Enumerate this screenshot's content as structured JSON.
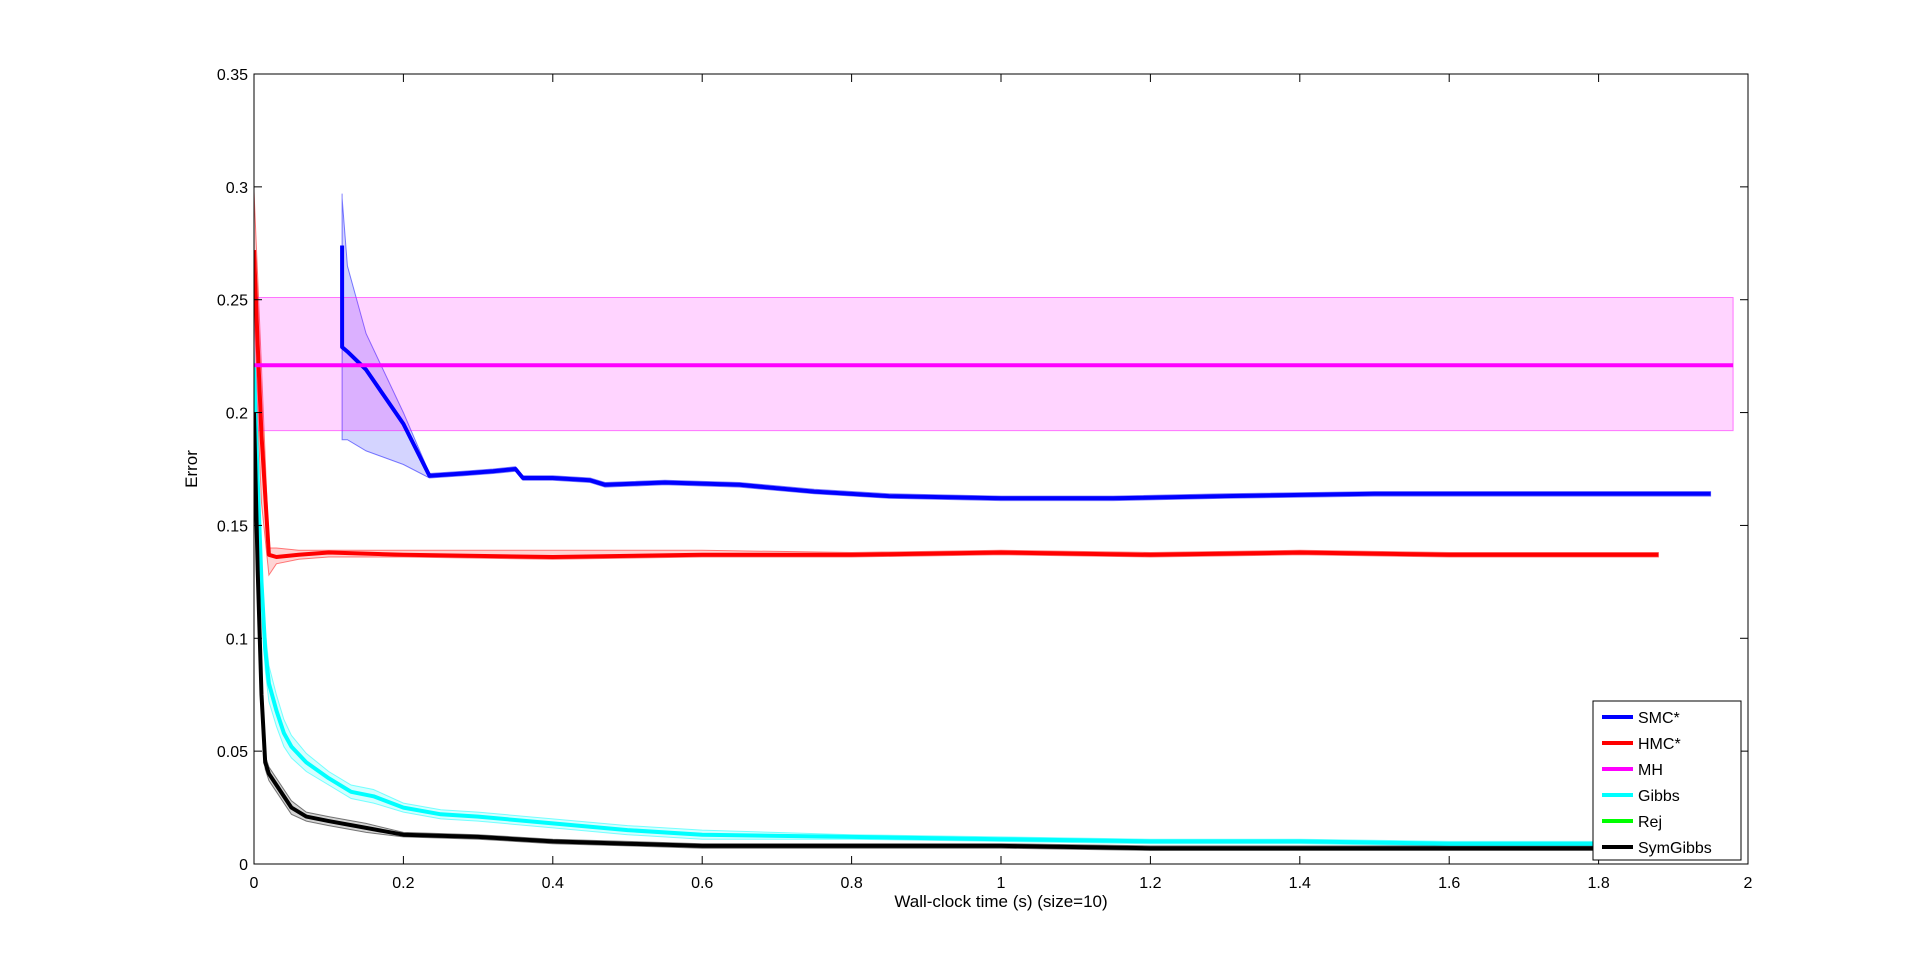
{
  "chart_data": {
    "type": "line",
    "title": "",
    "xlabel": "Wall-clock time (s) (size=10)",
    "ylabel": "Error",
    "xlim": [
      0,
      2
    ],
    "ylim": [
      0,
      0.35
    ],
    "xticks": [
      0,
      0.2,
      0.4,
      0.6,
      0.8,
      1,
      1.2,
      1.4,
      1.6,
      1.8,
      2
    ],
    "xtick_labels": [
      "0",
      "0.2",
      "0.4",
      "0.6",
      "0.8",
      "1",
      "1.2",
      "1.4",
      "1.6",
      "1.8",
      "2"
    ],
    "yticks": [
      0,
      0.05,
      0.1,
      0.15,
      0.2,
      0.25,
      0.3,
      0.35
    ],
    "ytick_labels": [
      "0",
      "0.05",
      "0.1",
      "0.15",
      "0.2",
      "0.25",
      "0.3",
      "0.35"
    ],
    "grid": false,
    "legend_position": "bottom-right",
    "series": [
      {
        "name": "SMC*",
        "color": "#0000ff",
        "x": [
          0.118,
          0.118,
          0.125,
          0.15,
          0.2,
          0.235,
          0.28,
          0.32,
          0.35,
          0.36,
          0.4,
          0.45,
          0.47,
          0.55,
          0.65,
          0.75,
          0.85,
          1.0,
          1.15,
          1.3,
          1.5,
          1.7,
          1.95
        ],
        "y": [
          0.274,
          0.229,
          0.227,
          0.219,
          0.195,
          0.172,
          0.173,
          0.174,
          0.175,
          0.171,
          0.171,
          0.17,
          0.168,
          0.169,
          0.168,
          0.165,
          0.163,
          0.162,
          0.162,
          0.163,
          0.164,
          0.164,
          0.164
        ],
        "upper": [
          0.297,
          0.295,
          0.265,
          0.235,
          0.2,
          0.173,
          0.174,
          0.175,
          0.176,
          0.172,
          0.172,
          0.171,
          0.169,
          0.17,
          0.169,
          0.166,
          0.164,
          0.163,
          0.163,
          0.164,
          0.165,
          0.165,
          0.165
        ],
        "lower": [
          0.25,
          0.188,
          0.188,
          0.183,
          0.177,
          0.171,
          0.172,
          0.173,
          0.174,
          0.17,
          0.17,
          0.169,
          0.167,
          0.168,
          0.167,
          0.164,
          0.162,
          0.161,
          0.161,
          0.162,
          0.163,
          0.163,
          0.163
        ]
      },
      {
        "name": "HMC*",
        "color": "#ff0000",
        "x": [
          0,
          0.005,
          0.01,
          0.02,
          0.03,
          0.06,
          0.1,
          0.2,
          0.4,
          0.6,
          0.8,
          1.0,
          1.2,
          1.4,
          1.6,
          1.88
        ],
        "y": [
          0.272,
          0.23,
          0.19,
          0.137,
          0.136,
          0.137,
          0.138,
          0.137,
          0.136,
          0.137,
          0.137,
          0.138,
          0.137,
          0.138,
          0.137,
          0.137
        ],
        "upper": [
          0.298,
          0.26,
          0.22,
          0.14,
          0.14,
          0.139,
          0.139,
          0.139,
          0.139,
          0.139,
          0.138,
          0.139,
          0.138,
          0.139,
          0.138,
          0.138
        ],
        "lower": [
          0.25,
          0.2,
          0.16,
          0.128,
          0.133,
          0.135,
          0.136,
          0.136,
          0.135,
          0.136,
          0.136,
          0.137,
          0.136,
          0.137,
          0.136,
          0.136
        ]
      },
      {
        "name": "MH",
        "color": "#ff00ff",
        "x": [
          0,
          1.98
        ],
        "y": [
          0.221,
          0.221
        ],
        "upper": [
          0.251,
          0.251
        ],
        "lower": [
          0.192,
          0.192
        ]
      },
      {
        "name": "Gibbs",
        "color": "#00ffff",
        "x": [
          0,
          0.005,
          0.01,
          0.015,
          0.02,
          0.03,
          0.04,
          0.05,
          0.07,
          0.1,
          0.13,
          0.16,
          0.2,
          0.25,
          0.3,
          0.4,
          0.5,
          0.6,
          0.8,
          1.0,
          1.2,
          1.4,
          1.6,
          1.8
        ],
        "y": [
          0.22,
          0.17,
          0.125,
          0.095,
          0.08,
          0.068,
          0.058,
          0.052,
          0.045,
          0.038,
          0.032,
          0.03,
          0.025,
          0.022,
          0.021,
          0.018,
          0.015,
          0.013,
          0.012,
          0.011,
          0.01,
          0.01,
          0.009,
          0.009
        ],
        "upper": [
          0.23,
          0.18,
          0.135,
          0.104,
          0.088,
          0.075,
          0.064,
          0.057,
          0.049,
          0.041,
          0.035,
          0.033,
          0.027,
          0.024,
          0.023,
          0.02,
          0.017,
          0.015,
          0.013,
          0.012,
          0.011,
          0.011,
          0.01,
          0.01
        ],
        "lower": [
          0.21,
          0.16,
          0.115,
          0.086,
          0.072,
          0.061,
          0.052,
          0.047,
          0.041,
          0.035,
          0.029,
          0.027,
          0.023,
          0.02,
          0.019,
          0.016,
          0.013,
          0.011,
          0.011,
          0.01,
          0.009,
          0.009,
          0.008,
          0.008
        ]
      },
      {
        "name": "Rej",
        "color": "#00ff00",
        "x": [],
        "y": [],
        "upper": [],
        "lower": []
      },
      {
        "name": "SymGibbs",
        "color": "#000000",
        "x": [
          0,
          0.005,
          0.01,
          0.015,
          0.02,
          0.03,
          0.05,
          0.07,
          0.1,
          0.15,
          0.2,
          0.3,
          0.4,
          0.5,
          0.6,
          0.8,
          1.0,
          1.2,
          1.4,
          1.6,
          1.8
        ],
        "y": [
          0.2,
          0.13,
          0.075,
          0.045,
          0.04,
          0.035,
          0.025,
          0.021,
          0.019,
          0.016,
          0.013,
          0.012,
          0.01,
          0.009,
          0.008,
          0.008,
          0.008,
          0.007,
          0.007,
          0.007,
          0.007
        ],
        "upper": [
          0.21,
          0.14,
          0.08,
          0.048,
          0.043,
          0.038,
          0.028,
          0.023,
          0.021,
          0.018,
          0.014,
          0.013,
          0.011,
          0.01,
          0.009,
          0.009,
          0.009,
          0.008,
          0.008,
          0.008,
          0.008
        ],
        "lower": [
          0.19,
          0.12,
          0.07,
          0.042,
          0.037,
          0.032,
          0.022,
          0.019,
          0.017,
          0.014,
          0.012,
          0.011,
          0.009,
          0.008,
          0.007,
          0.007,
          0.007,
          0.006,
          0.006,
          0.006,
          0.006
        ]
      }
    ]
  }
}
